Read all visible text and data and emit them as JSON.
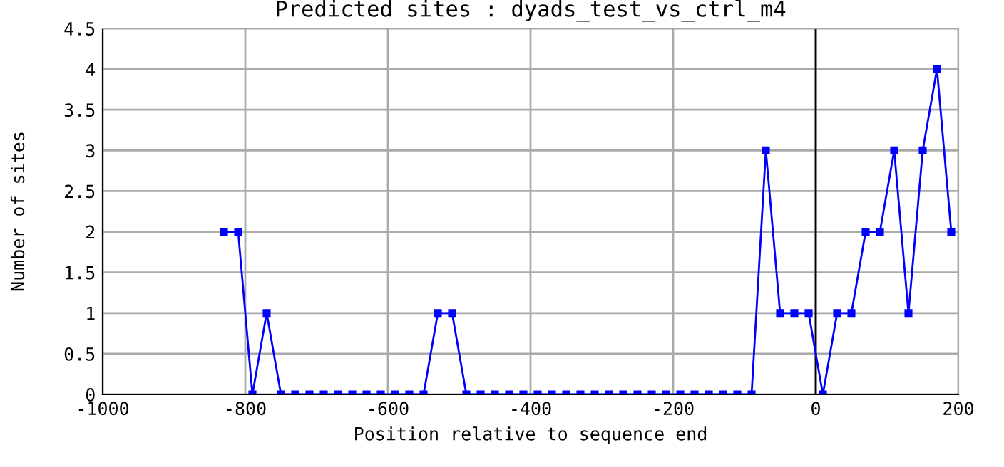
{
  "chart_data": {
    "type": "line",
    "title": "Predicted sites : dyads_test_vs_ctrl_m4",
    "xlabel": "Position relative to sequence end",
    "ylabel": "Number of sites",
    "x": [
      -830,
      -810,
      -790,
      -770,
      -750,
      -730,
      -710,
      -690,
      -670,
      -650,
      -630,
      -610,
      -590,
      -570,
      -550,
      -530,
      -510,
      -490,
      -470,
      -450,
      -430,
      -410,
      -390,
      -370,
      -350,
      -330,
      -310,
      -290,
      -270,
      -250,
      -230,
      -210,
      -190,
      -170,
      -150,
      -130,
      -110,
      -90,
      -70,
      -50,
      -30,
      -10,
      10,
      30,
      50,
      70,
      90,
      110,
      130,
      150,
      170,
      190
    ],
    "series": [
      {
        "color": "#0000ff",
        "values": [
          2,
          2,
          0,
          1,
          0,
          0,
          0,
          0,
          0,
          0,
          0,
          0,
          0,
          0,
          0,
          1,
          1,
          0,
          0,
          0,
          0,
          0,
          0,
          0,
          0,
          0,
          0,
          0,
          0,
          0,
          0,
          0,
          0,
          0,
          0,
          0,
          0,
          0,
          3,
          1,
          1,
          1,
          0,
          1,
          1,
          2,
          2,
          3,
          1,
          3,
          4,
          2
        ]
      }
    ],
    "xlim": [
      -1000,
      200
    ],
    "xticks": [
      -1000,
      -800,
      -600,
      -400,
      -200,
      0,
      200
    ],
    "ylim": [
      0,
      4.5
    ],
    "yticks": [
      0,
      0.5,
      1,
      1.5,
      2,
      2.5,
      3,
      3.5,
      4,
      4.5
    ],
    "ref_lines": [
      {
        "axis": "x",
        "value": 0,
        "color": "#000000"
      }
    ],
    "grid": true,
    "marker": "square",
    "line_style": "solid",
    "legend": false
  }
}
